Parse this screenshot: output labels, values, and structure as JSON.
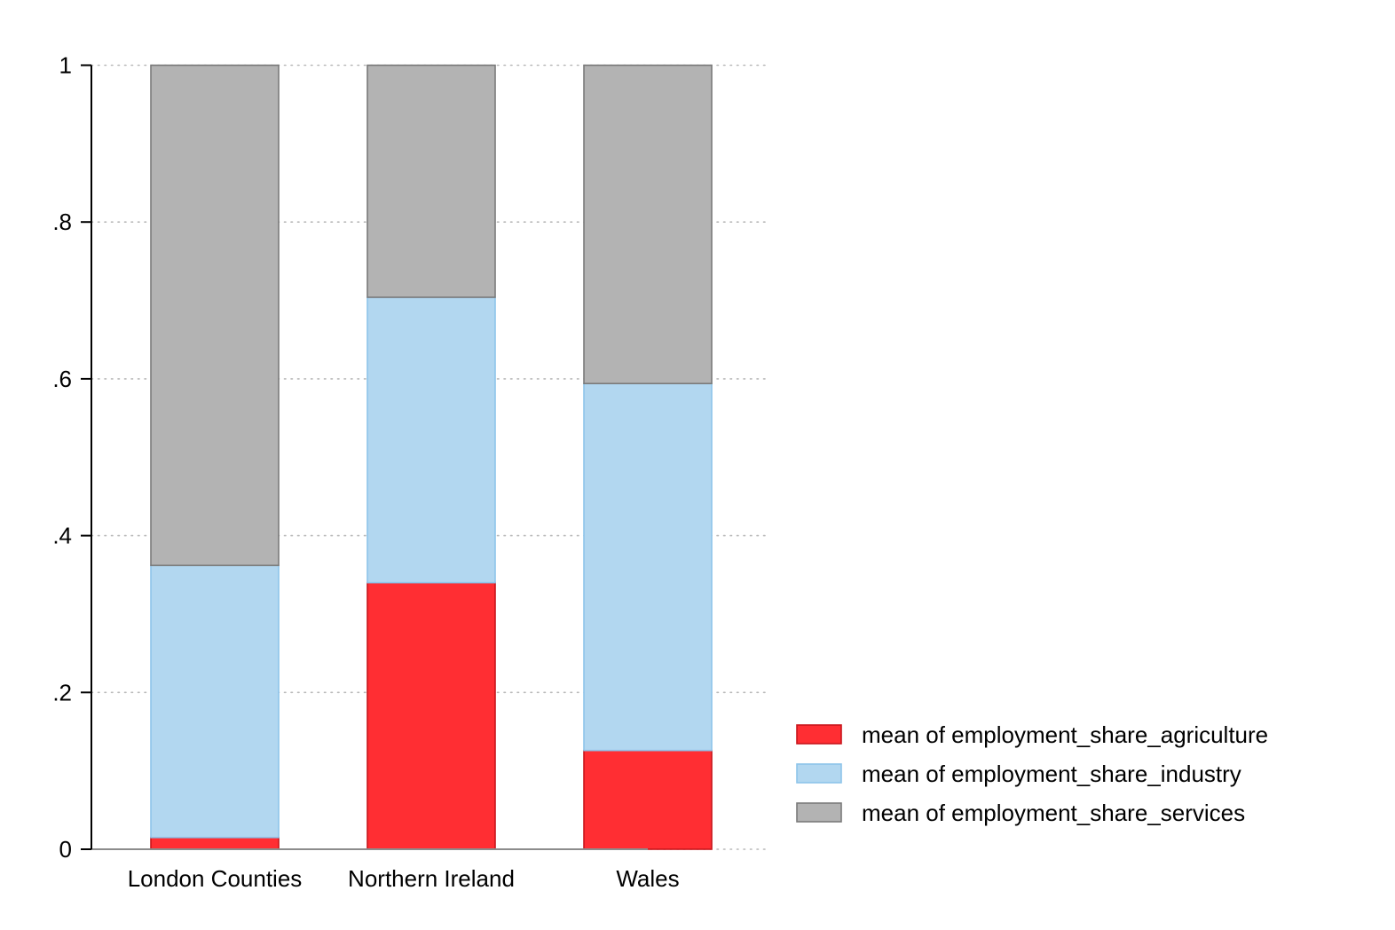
{
  "chart_data": {
    "type": "bar",
    "stacked": true,
    "categories": [
      "London Counties",
      "Northern Ireland",
      "Wales"
    ],
    "series": [
      {
        "name": "mean of employment_share_agriculture",
        "values": [
          0.015,
          0.34,
          0.126
        ],
        "color": "#ff2e33",
        "stroke": "#c8161c"
      },
      {
        "name": "mean of employment_share_industry",
        "values": [
          0.347,
          0.364,
          0.468
        ],
        "color": "#b2d7f0",
        "stroke": "#8ec4ea"
      },
      {
        "name": "mean of employment_share_services",
        "values": [
          0.638,
          0.296,
          0.406
        ],
        "color": "#b3b3b3",
        "stroke": "#7a7a7a"
      }
    ],
    "y_ticks": [
      {
        "value": 0,
        "label": "0"
      },
      {
        "value": 0.2,
        "label": ".2"
      },
      {
        "value": 0.4,
        "label": ".4"
      },
      {
        "value": 0.6,
        "label": ".6"
      },
      {
        "value": 0.8,
        "label": ".8"
      },
      {
        "value": 1,
        "label": "1"
      }
    ],
    "ylim": [
      0,
      1
    ],
    "grid": true,
    "legend_position": "bottom-right",
    "title": "",
    "xlabel": "",
    "ylabel": ""
  }
}
